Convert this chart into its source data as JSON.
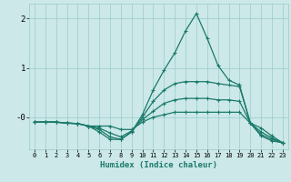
{
  "xlabel": "Humidex (Indice chaleur)",
  "xlim": [
    -0.5,
    23.5
  ],
  "ylim": [
    -0.65,
    2.3
  ],
  "xticks": [
    0,
    1,
    2,
    3,
    4,
    5,
    6,
    7,
    8,
    9,
    10,
    11,
    12,
    13,
    14,
    15,
    16,
    17,
    18,
    19,
    20,
    21,
    22,
    23
  ],
  "bg_color": "#cce8e8",
  "line_color": "#1a7a6a",
  "grid_color": "#99cccc",
  "lines": {
    "x": [
      0,
      1,
      2,
      3,
      4,
      5,
      6,
      7,
      8,
      9,
      10,
      11,
      12,
      13,
      14,
      15,
      16,
      17,
      18,
      19,
      20,
      21,
      22,
      23
    ],
    "y1": [
      -0.1,
      -0.1,
      -0.1,
      -0.12,
      -0.13,
      -0.18,
      -0.3,
      -0.45,
      -0.45,
      -0.3,
      0.05,
      0.55,
      0.95,
      1.3,
      1.75,
      2.1,
      1.6,
      1.05,
      0.75,
      0.65,
      -0.12,
      -0.38,
      -0.48,
      -0.52
    ],
    "y2": [
      -0.1,
      -0.1,
      -0.1,
      -0.12,
      -0.13,
      -0.18,
      -0.25,
      -0.4,
      -0.45,
      -0.3,
      0.0,
      0.32,
      0.55,
      0.68,
      0.72,
      0.72,
      0.72,
      0.68,
      0.65,
      0.62,
      -0.12,
      -0.35,
      -0.45,
      -0.52
    ],
    "y3": [
      -0.1,
      -0.1,
      -0.1,
      -0.12,
      -0.13,
      -0.18,
      -0.22,
      -0.32,
      -0.4,
      -0.28,
      -0.05,
      0.12,
      0.28,
      0.35,
      0.38,
      0.38,
      0.38,
      0.35,
      0.35,
      0.32,
      -0.12,
      -0.3,
      -0.42,
      -0.52
    ],
    "y4": [
      -0.1,
      -0.1,
      -0.1,
      -0.12,
      -0.13,
      -0.18,
      -0.18,
      -0.18,
      -0.25,
      -0.25,
      -0.1,
      0.0,
      0.05,
      0.1,
      0.1,
      0.1,
      0.1,
      0.1,
      0.1,
      0.1,
      -0.12,
      -0.22,
      -0.38,
      -0.52
    ]
  },
  "marker_style": "+",
  "marker_size": 3.5,
  "line_width": 0.9
}
